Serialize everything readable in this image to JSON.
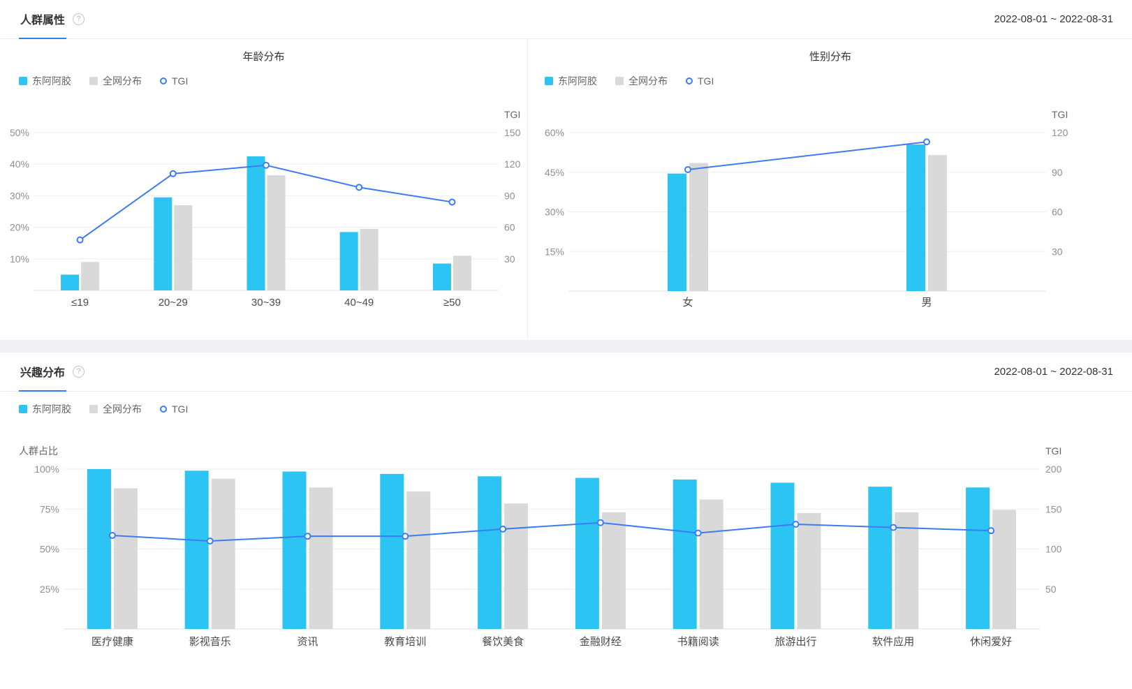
{
  "colors": {
    "brand": "#2cc4f2",
    "network": "#d9d9d9",
    "line": "#3b7cf6",
    "accent": "#2e7cf6",
    "grid": "#ededed",
    "axis": "#e0e0e0",
    "tick_text": "#8f8f8f",
    "cat_text": "#4a4a4a"
  },
  "legend": {
    "brand": "东阿阿胶",
    "network": "全网分布",
    "tgi": "TGI"
  },
  "audience_panel": {
    "title": "人群属性",
    "help_icon": "?",
    "date_range": "2022-08-01 ~ 2022-08-31"
  },
  "interest_panel": {
    "title": "兴趣分布",
    "help_icon": "?",
    "date_range": "2022-08-01 ~ 2022-08-31"
  },
  "chart_data": [
    {
      "id": "age",
      "type": "bar",
      "title": "年龄分布",
      "categories": [
        "≤19",
        "20~29",
        "30~39",
        "40~49",
        "≥50"
      ],
      "series": [
        {
          "name": "东阿阿胶",
          "values": [
            5,
            29.5,
            42.5,
            18.5,
            8.5
          ]
        },
        {
          "name": "全网分布",
          "values": [
            9,
            27,
            36.5,
            19.5,
            11
          ]
        }
      ],
      "line": {
        "name": "TGI",
        "values": [
          48,
          111,
          119,
          98,
          84
        ]
      },
      "axes": {
        "left_max": 50,
        "left_ticks": [
          {
            "value": 10,
            "label": "10%"
          },
          {
            "value": 20,
            "label": "20%"
          },
          {
            "value": 30,
            "label": "30%"
          },
          {
            "value": 40,
            "label": "40%"
          },
          {
            "value": 50,
            "label": "50%"
          }
        ],
        "right_max": 150,
        "right_ticks": [
          {
            "value": 30,
            "label": "30"
          },
          {
            "value": 60,
            "label": "60"
          },
          {
            "value": 90,
            "label": "90"
          },
          {
            "value": 120,
            "label": "120"
          },
          {
            "value": 150,
            "label": "150"
          }
        ],
        "right_title": "TGI"
      }
    },
    {
      "id": "gender",
      "type": "bar",
      "title": "性别分布",
      "categories": [
        "女",
        "男"
      ],
      "series": [
        {
          "name": "东阿阿胶",
          "values": [
            44.5,
            55.5
          ]
        },
        {
          "name": "全网分布",
          "values": [
            48.5,
            51.5
          ]
        }
      ],
      "line": {
        "name": "TGI",
        "values": [
          92,
          113
        ]
      },
      "axes": {
        "left_max": 60,
        "left_ticks": [
          {
            "value": 15,
            "label": "15%"
          },
          {
            "value": 30,
            "label": "30%"
          },
          {
            "value": 45,
            "label": "45%"
          },
          {
            "value": 60,
            "label": "60%"
          }
        ],
        "right_max": 120,
        "right_ticks": [
          {
            "value": 30,
            "label": "30"
          },
          {
            "value": 60,
            "label": "60"
          },
          {
            "value": 90,
            "label": "90"
          },
          {
            "value": 120,
            "label": "120"
          }
        ],
        "right_title": "TGI"
      }
    },
    {
      "id": "interest",
      "type": "bar",
      "title": "兴趣分布",
      "categories": [
        "医疗健康",
        "影视音乐",
        "资讯",
        "教育培训",
        "餐饮美食",
        "金融财经",
        "书籍阅读",
        "旅游出行",
        "软件应用",
        "休闲爱好"
      ],
      "series": [
        {
          "name": "东阿阿胶",
          "values": [
            100,
            99,
            98.5,
            97,
            95.5,
            94.5,
            93.5,
            91.5,
            89,
            88.5
          ]
        },
        {
          "name": "全网分布",
          "values": [
            88,
            94,
            88.5,
            86,
            78.5,
            73,
            81,
            72.5,
            73,
            74.5
          ]
        }
      ],
      "line": {
        "name": "TGI",
        "values": [
          117,
          110,
          116,
          116,
          125,
          133,
          120,
          131,
          127,
          123
        ]
      },
      "axes": {
        "left_max": 100,
        "left_ticks": [
          {
            "value": 25,
            "label": "25%"
          },
          {
            "value": 50,
            "label": "50%"
          },
          {
            "value": 75,
            "label": "75%"
          },
          {
            "value": 100,
            "label": "100%"
          }
        ],
        "right_max": 200,
        "right_ticks": [
          {
            "value": 50,
            "label": "50"
          },
          {
            "value": 100,
            "label": "100"
          },
          {
            "value": 150,
            "label": "150"
          },
          {
            "value": 200,
            "label": "200"
          }
        ],
        "left_title": "人群占比",
        "right_title": "TGI"
      }
    }
  ]
}
